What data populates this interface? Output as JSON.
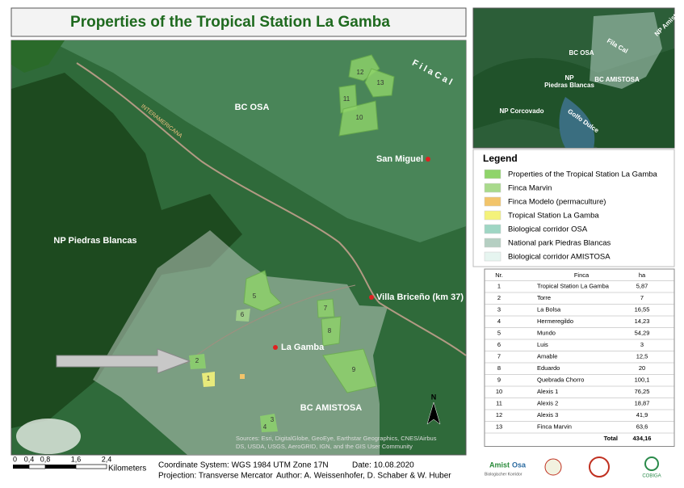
{
  "title": "Properties of the Tropical Station La Gamba",
  "map": {
    "bc_osa": "BC OSA",
    "fila_cal": "F i l a  C a l",
    "san_miguel": "San Miguel",
    "interamericana": "INTERAMERICANA",
    "np_piedras_blancas": "NP Piedras Blancas",
    "villa_briceno": "Villa Briceño (km 37)",
    "la_gamba": "La Gamba",
    "bc_amistosa": "BC AMISTOSA",
    "north": "N",
    "parcels": [
      "1",
      "2",
      "3",
      "4",
      "5",
      "6",
      "7",
      "8",
      "9",
      "10",
      "11",
      "12",
      "13"
    ],
    "attribution": [
      "Sources: Esri, DigitalGlobe, GeoEye, Earthstar Geographics, CNES/Airbus",
      "DS, USDA, USGS, AeroGRID, IGN, and the GIS User Community"
    ]
  },
  "inset": {
    "np_amistad": "NP Amistad",
    "fila_cal": "Fila Cal",
    "bc_osa": "BC OSA",
    "np": "NP",
    "piedras_blancas": "Piedras Blancas",
    "bc_amistosa": "BC AMISTOSA",
    "np_corcovado": "NP Corcovado",
    "golfo_dulce": "Golfo Dulce"
  },
  "legend": {
    "title": "Legend",
    "items": [
      {
        "label": "Properties of the Tropical Station La Gamba",
        "color": "#8fd46a"
      },
      {
        "label": "Finca Marvin",
        "color": "#a9da8c"
      },
      {
        "label": "Finca Modelo (permaculture)",
        "color": "#f2c46a"
      },
      {
        "label": "Tropical Station La Gamba",
        "color": "#f4f27a"
      },
      {
        "label": "Biological corridor OSA",
        "color": "#9fd6c4"
      },
      {
        "label": "National park Piedras Blancas",
        "color": "#b5cfc2"
      },
      {
        "label": "Biological corridor AMISTOSA",
        "color": "#e6f5f0"
      }
    ]
  },
  "table": {
    "header": [
      "Nr.",
      "Finca",
      "ha"
    ],
    "rows": [
      [
        "1",
        "Tropical Station La Gamba",
        "5,87"
      ],
      [
        "2",
        "Torre",
        "7"
      ],
      [
        "3",
        "La Bolsa",
        "16,55"
      ],
      [
        "4",
        "Hermeregildo",
        "14,23"
      ],
      [
        "5",
        "Mundo",
        "54,29"
      ],
      [
        "6",
        "Luis",
        "3"
      ],
      [
        "7",
        "Amable",
        "12,5"
      ],
      [
        "8",
        "Eduardo",
        "20"
      ],
      [
        "9",
        "Quebrada Chorro",
        "100,1"
      ],
      [
        "10",
        "Alexis 1",
        "76,25"
      ],
      [
        "11",
        "Alexis 2",
        "18,87"
      ],
      [
        "12",
        "Alexis 3",
        "41,9"
      ],
      [
        "13",
        "Finca Marvin",
        "63,6"
      ]
    ],
    "total": [
      "Total",
      "434,16"
    ]
  },
  "scale": {
    "ticks": [
      "0",
      "0,4",
      "0,8",
      "1,6",
      "2,4"
    ],
    "unit": "Kilometers"
  },
  "footer": {
    "coordinate_system": "Coordinate System: WGS 1984 UTM Zone 17N",
    "date": "Date: 10.08.2020",
    "projection": "Projection: Transverse Mercator",
    "authors": "Author: A. Weissenhofer, D. Schaber & W. Huber"
  },
  "logos": [
    "Amist",
    "Osa",
    "Biologischer Korridor",
    "COBIGA"
  ]
}
